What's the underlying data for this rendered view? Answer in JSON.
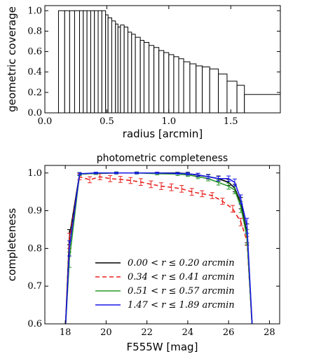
{
  "chart_data": [
    {
      "type": "bar",
      "title": "",
      "xlabel": "radius [arcmin]",
      "ylabel": "geometric coverage",
      "xlim": [
        0.0,
        1.9
      ],
      "ylim": [
        0.0,
        1.05
      ],
      "xticks": [
        "0.0",
        "0.5",
        "1.0",
        "1.5"
      ],
      "xtick_values": [
        0.0,
        0.5,
        1.0,
        1.5
      ],
      "yticks": [
        "0.0",
        "0.2",
        "0.4",
        "0.6",
        "0.8",
        "1.0"
      ],
      "ytick_values": [
        0.0,
        0.2,
        0.4,
        0.6,
        0.8,
        1.0
      ],
      "bins": [
        {
          "x0": 0.11,
          "x1": 0.16,
          "value": 1.0
        },
        {
          "x0": 0.16,
          "x1": 0.2,
          "value": 1.0
        },
        {
          "x0": 0.2,
          "x1": 0.24,
          "value": 1.0
        },
        {
          "x0": 0.24,
          "x1": 0.28,
          "value": 1.0
        },
        {
          "x0": 0.28,
          "x1": 0.31,
          "value": 1.0
        },
        {
          "x0": 0.31,
          "x1": 0.34,
          "value": 1.0
        },
        {
          "x0": 0.34,
          "x1": 0.37,
          "value": 1.0
        },
        {
          "x0": 0.37,
          "x1": 0.4,
          "value": 1.0
        },
        {
          "x0": 0.4,
          "x1": 0.43,
          "value": 1.0
        },
        {
          "x0": 0.43,
          "x1": 0.46,
          "value": 1.0
        },
        {
          "x0": 0.46,
          "x1": 0.49,
          "value": 1.0
        },
        {
          "x0": 0.49,
          "x1": 0.51,
          "value": 0.96
        },
        {
          "x0": 0.51,
          "x1": 0.54,
          "value": 0.93
        },
        {
          "x0": 0.54,
          "x1": 0.57,
          "value": 0.9
        },
        {
          "x0": 0.57,
          "x1": 0.59,
          "value": 0.87
        },
        {
          "x0": 0.59,
          "x1": 0.61,
          "value": 0.84
        },
        {
          "x0": 0.61,
          "x1": 0.64,
          "value": 0.86
        },
        {
          "x0": 0.64,
          "x1": 0.67,
          "value": 0.84
        },
        {
          "x0": 0.67,
          "x1": 0.7,
          "value": 0.79
        },
        {
          "x0": 0.7,
          "x1": 0.73,
          "value": 0.77
        },
        {
          "x0": 0.73,
          "x1": 0.77,
          "value": 0.74
        },
        {
          "x0": 0.77,
          "x1": 0.8,
          "value": 0.71
        },
        {
          "x0": 0.8,
          "x1": 0.84,
          "value": 0.69
        },
        {
          "x0": 0.84,
          "x1": 0.88,
          "value": 0.66
        },
        {
          "x0": 0.88,
          "x1": 0.92,
          "value": 0.64
        },
        {
          "x0": 0.92,
          "x1": 0.96,
          "value": 0.61
        },
        {
          "x0": 0.96,
          "x1": 1.0,
          "value": 0.59
        },
        {
          "x0": 1.0,
          "x1": 1.04,
          "value": 0.57
        },
        {
          "x0": 1.04,
          "x1": 1.08,
          "value": 0.55
        },
        {
          "x0": 1.08,
          "x1": 1.12,
          "value": 0.53
        },
        {
          "x0": 1.12,
          "x1": 1.17,
          "value": 0.5
        },
        {
          "x0": 1.17,
          "x1": 1.22,
          "value": 0.48
        },
        {
          "x0": 1.22,
          "x1": 1.27,
          "value": 0.46
        },
        {
          "x0": 1.27,
          "x1": 1.33,
          "value": 0.45
        },
        {
          "x0": 1.33,
          "x1": 1.4,
          "value": 0.43
        },
        {
          "x0": 1.4,
          "x1": 1.47,
          "value": 0.38
        },
        {
          "x0": 1.47,
          "x1": 1.55,
          "value": 0.31
        },
        {
          "x0": 1.55,
          "x1": 1.61,
          "value": 0.27
        },
        {
          "x0": 1.61,
          "x1": 1.9,
          "value": 0.18
        }
      ]
    },
    {
      "type": "line",
      "title": "photometric completeness",
      "xlabel": "F555W [mag]",
      "ylabel": "completeness",
      "xlim": [
        17.0,
        28.5
      ],
      "ylim": [
        0.6,
        1.02
      ],
      "xticks": [
        "18",
        "20",
        "22",
        "24",
        "26",
        "28"
      ],
      "xtick_values": [
        18,
        20,
        22,
        24,
        26,
        28
      ],
      "yticks": [
        "0.6",
        "0.7",
        "0.8",
        "0.9",
        "1.0"
      ],
      "ytick_values": [
        0.6,
        0.7,
        0.8,
        0.9,
        1.0
      ],
      "legend_position": "lower-left",
      "series": [
        {
          "name": "0.00 < r ≤ 0.20 arcmin",
          "color": "#000000",
          "dash": "solid",
          "x": [
            18.0,
            18.2,
            18.7,
            19.5,
            20.5,
            21.5,
            22.5,
            23.5,
            24.0,
            24.5,
            25.0,
            25.5,
            26.0,
            26.3,
            26.6,
            26.9,
            27.2
          ],
          "y": [
            0.58,
            0.83,
            0.997,
            0.999,
            1.0,
            1.0,
            1.0,
            1.0,
            0.998,
            0.994,
            0.99,
            0.985,
            0.975,
            0.96,
            0.92,
            0.84,
            0.55
          ],
          "err": [
            0.0,
            0.02,
            0.003,
            0.002,
            0.002,
            0.002,
            0.002,
            0.002,
            0.004,
            0.005,
            0.006,
            0.007,
            0.008,
            0.01,
            0.015,
            0.025,
            0.0
          ]
        },
        {
          "name": "0.34 < r ≤ 0.41 arcmin",
          "color": "#e8231f",
          "dash": "dashed",
          "x": [
            18.0,
            18.2,
            18.7,
            19.2,
            19.7,
            20.2,
            20.7,
            21.2,
            21.7,
            22.2,
            22.7,
            23.2,
            23.7,
            24.2,
            24.7,
            25.2,
            25.7,
            26.2,
            26.6,
            26.9,
            27.2
          ],
          "y": [
            0.58,
            0.82,
            0.99,
            0.982,
            0.99,
            0.985,
            0.983,
            0.98,
            0.976,
            0.97,
            0.965,
            0.962,
            0.958,
            0.95,
            0.945,
            0.94,
            0.925,
            0.905,
            0.87,
            0.82,
            0.55
          ],
          "err": [
            0.0,
            0.02,
            0.008,
            0.008,
            0.008,
            0.008,
            0.008,
            0.008,
            0.009,
            0.009,
            0.009,
            0.009,
            0.009,
            0.009,
            0.008,
            0.008,
            0.008,
            0.009,
            0.01,
            0.012,
            0.0
          ]
        },
        {
          "name": "0.51 < r ≤ 0.57 arcmin",
          "color": "#2a9a2a",
          "dash": "solid",
          "x": [
            18.0,
            18.2,
            18.7,
            19.5,
            20.5,
            21.5,
            22.5,
            23.5,
            24.0,
            24.5,
            25.0,
            25.5,
            26.0,
            26.3,
            26.6,
            26.9,
            27.2
          ],
          "y": [
            0.58,
            0.77,
            0.997,
            0.999,
            1.0,
            1.0,
            0.998,
            0.997,
            0.995,
            0.99,
            0.985,
            0.975,
            0.965,
            0.955,
            0.91,
            0.83,
            0.55
          ],
          "err": [
            0.0,
            0.02,
            0.004,
            0.003,
            0.003,
            0.003,
            0.003,
            0.004,
            0.004,
            0.005,
            0.006,
            0.007,
            0.008,
            0.01,
            0.015,
            0.02,
            0.0
          ]
        },
        {
          "name": "1.47 < r ≤ 1.89 arcmin",
          "color": "#1a1ae6",
          "dash": "solid",
          "x": [
            18.0,
            18.2,
            18.7,
            19.5,
            20.5,
            21.5,
            22.5,
            23.5,
            24.0,
            24.5,
            25.0,
            25.5,
            26.0,
            26.3,
            26.6,
            26.9,
            27.2
          ],
          "y": [
            0.58,
            0.8,
            0.998,
            1.0,
            1.0,
            1.0,
            1.0,
            0.999,
            0.998,
            0.995,
            0.99,
            0.985,
            0.985,
            0.975,
            0.93,
            0.86,
            0.55
          ],
          "err": [
            0.0,
            0.02,
            0.003,
            0.002,
            0.002,
            0.002,
            0.002,
            0.002,
            0.003,
            0.004,
            0.005,
            0.006,
            0.007,
            0.009,
            0.012,
            0.02,
            0.0
          ]
        }
      ]
    }
  ]
}
